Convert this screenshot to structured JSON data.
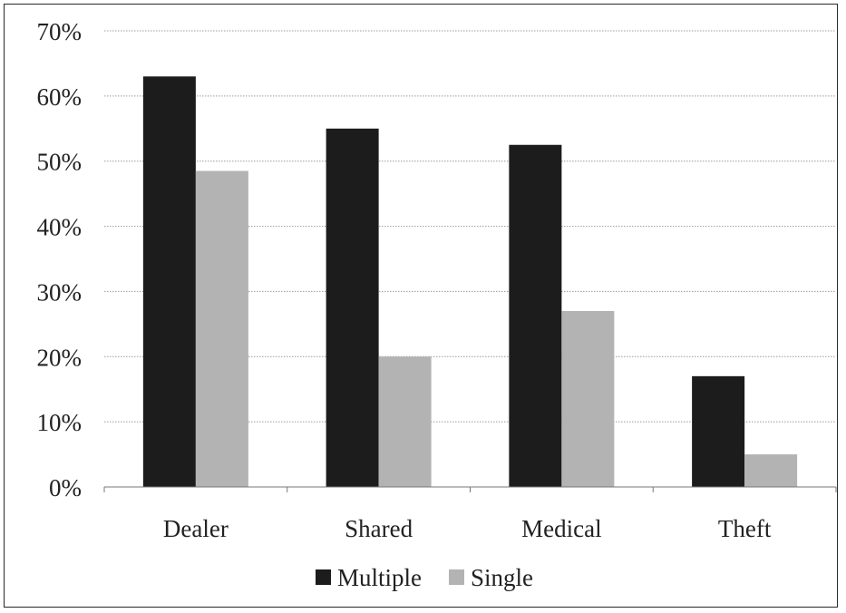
{
  "chart_data": {
    "type": "bar",
    "title": "",
    "xlabel": "",
    "ylabel": "",
    "categories": [
      "Dealer",
      "Shared",
      "Medical",
      "Theft"
    ],
    "series": [
      {
        "name": "Multiple",
        "values": [
          63,
          55,
          52.5,
          17
        ],
        "color": "#1c1c1c"
      },
      {
        "name": "Single",
        "values": [
          48.5,
          20,
          27,
          5
        ],
        "color": "#b3b3b3"
      }
    ],
    "ylim": [
      0,
      70
    ],
    "yticks": [
      {
        "value": 0,
        "label": "0%"
      },
      {
        "value": 10,
        "label": "10%"
      },
      {
        "value": 20,
        "label": "20%"
      },
      {
        "value": 30,
        "label": "30%"
      },
      {
        "value": 40,
        "label": "40%"
      },
      {
        "value": 50,
        "label": "50%"
      },
      {
        "value": 60,
        "label": "60%"
      },
      {
        "value": 70,
        "label": "70%"
      }
    ],
    "grid": true,
    "legend_position": "bottom"
  }
}
